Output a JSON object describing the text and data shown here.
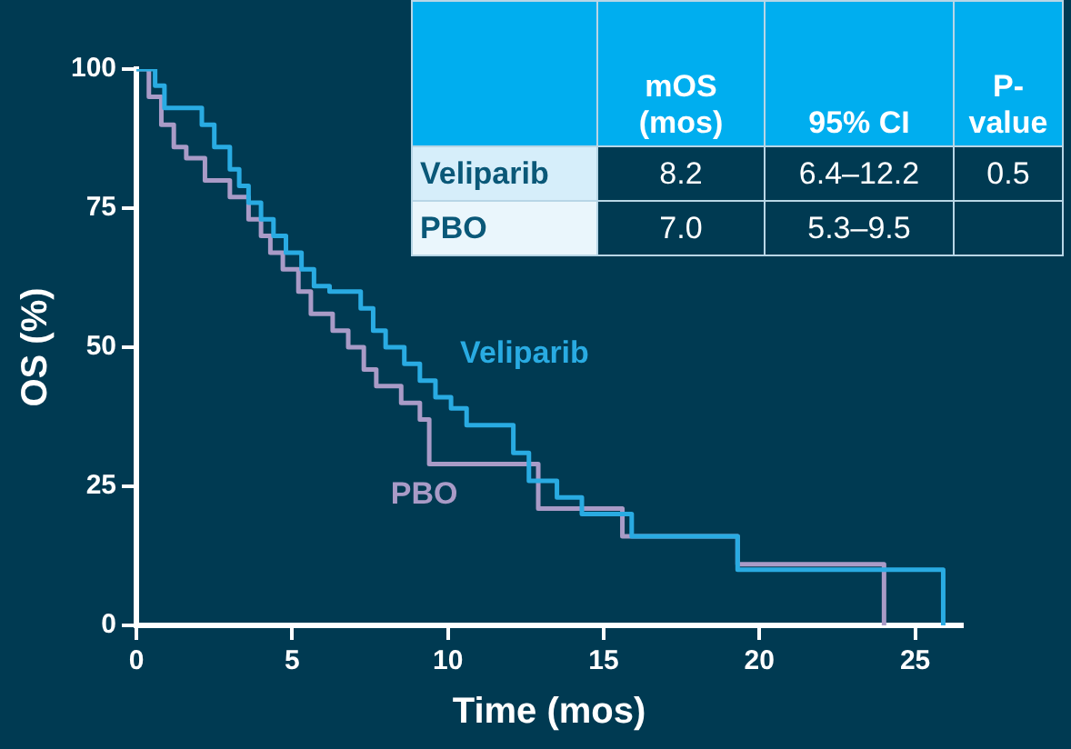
{
  "chart_data": {
    "type": "step",
    "xlabel": "Time (mos)",
    "ylabel": "OS (%)",
    "xlim": [
      0,
      26.5
    ],
    "xticks": [
      0,
      5,
      10,
      15,
      20,
      25
    ],
    "ylim": [
      0,
      100
    ],
    "yticks": [
      0,
      25,
      50,
      75,
      100
    ],
    "grid": false,
    "legend": false,
    "marker": "none",
    "series": [
      {
        "name": "Veliparib",
        "color": "#29abe2",
        "x": [
          0,
          0.6,
          0.9,
          2.1,
          2.5,
          3.0,
          3.3,
          3.6,
          4.0,
          4.4,
          4.8,
          5.3,
          5.7,
          6.2,
          7.2,
          7.6,
          8.0,
          8.6,
          9.1,
          9.6,
          10.1,
          10.6,
          12.1,
          12.6,
          13.5,
          14.3,
          15.9,
          19.3,
          25.9
        ],
        "values": [
          100,
          97,
          93,
          90,
          86,
          82,
          79,
          76,
          73,
          70,
          67,
          64,
          61,
          60,
          57,
          53,
          50,
          47,
          44,
          41,
          39,
          36,
          31,
          26,
          23,
          20,
          16,
          10,
          0
        ]
      },
      {
        "name": "PBO",
        "color": "#a99bc7",
        "x": [
          0,
          0.4,
          0.8,
          1.2,
          1.6,
          2.2,
          3.0,
          3.6,
          4.0,
          4.3,
          4.7,
          5.2,
          5.6,
          6.3,
          6.8,
          7.3,
          7.7,
          8.5,
          9.1,
          9.4,
          12.9,
          15.6,
          19.3,
          24.0
        ],
        "values": [
          100,
          95,
          90,
          86,
          84,
          80,
          77,
          73,
          70,
          67,
          64,
          60,
          56,
          53,
          50,
          46,
          43,
          40,
          37,
          29,
          21,
          16,
          11,
          0
        ]
      }
    ],
    "annotations": [
      "mOS (mos)",
      "95% CI",
      "P-value",
      "Veliparib",
      "8.2",
      "6.4–12.2",
      "0.5",
      "PBO",
      "7.0",
      "5.3–9.5"
    ]
  }
}
